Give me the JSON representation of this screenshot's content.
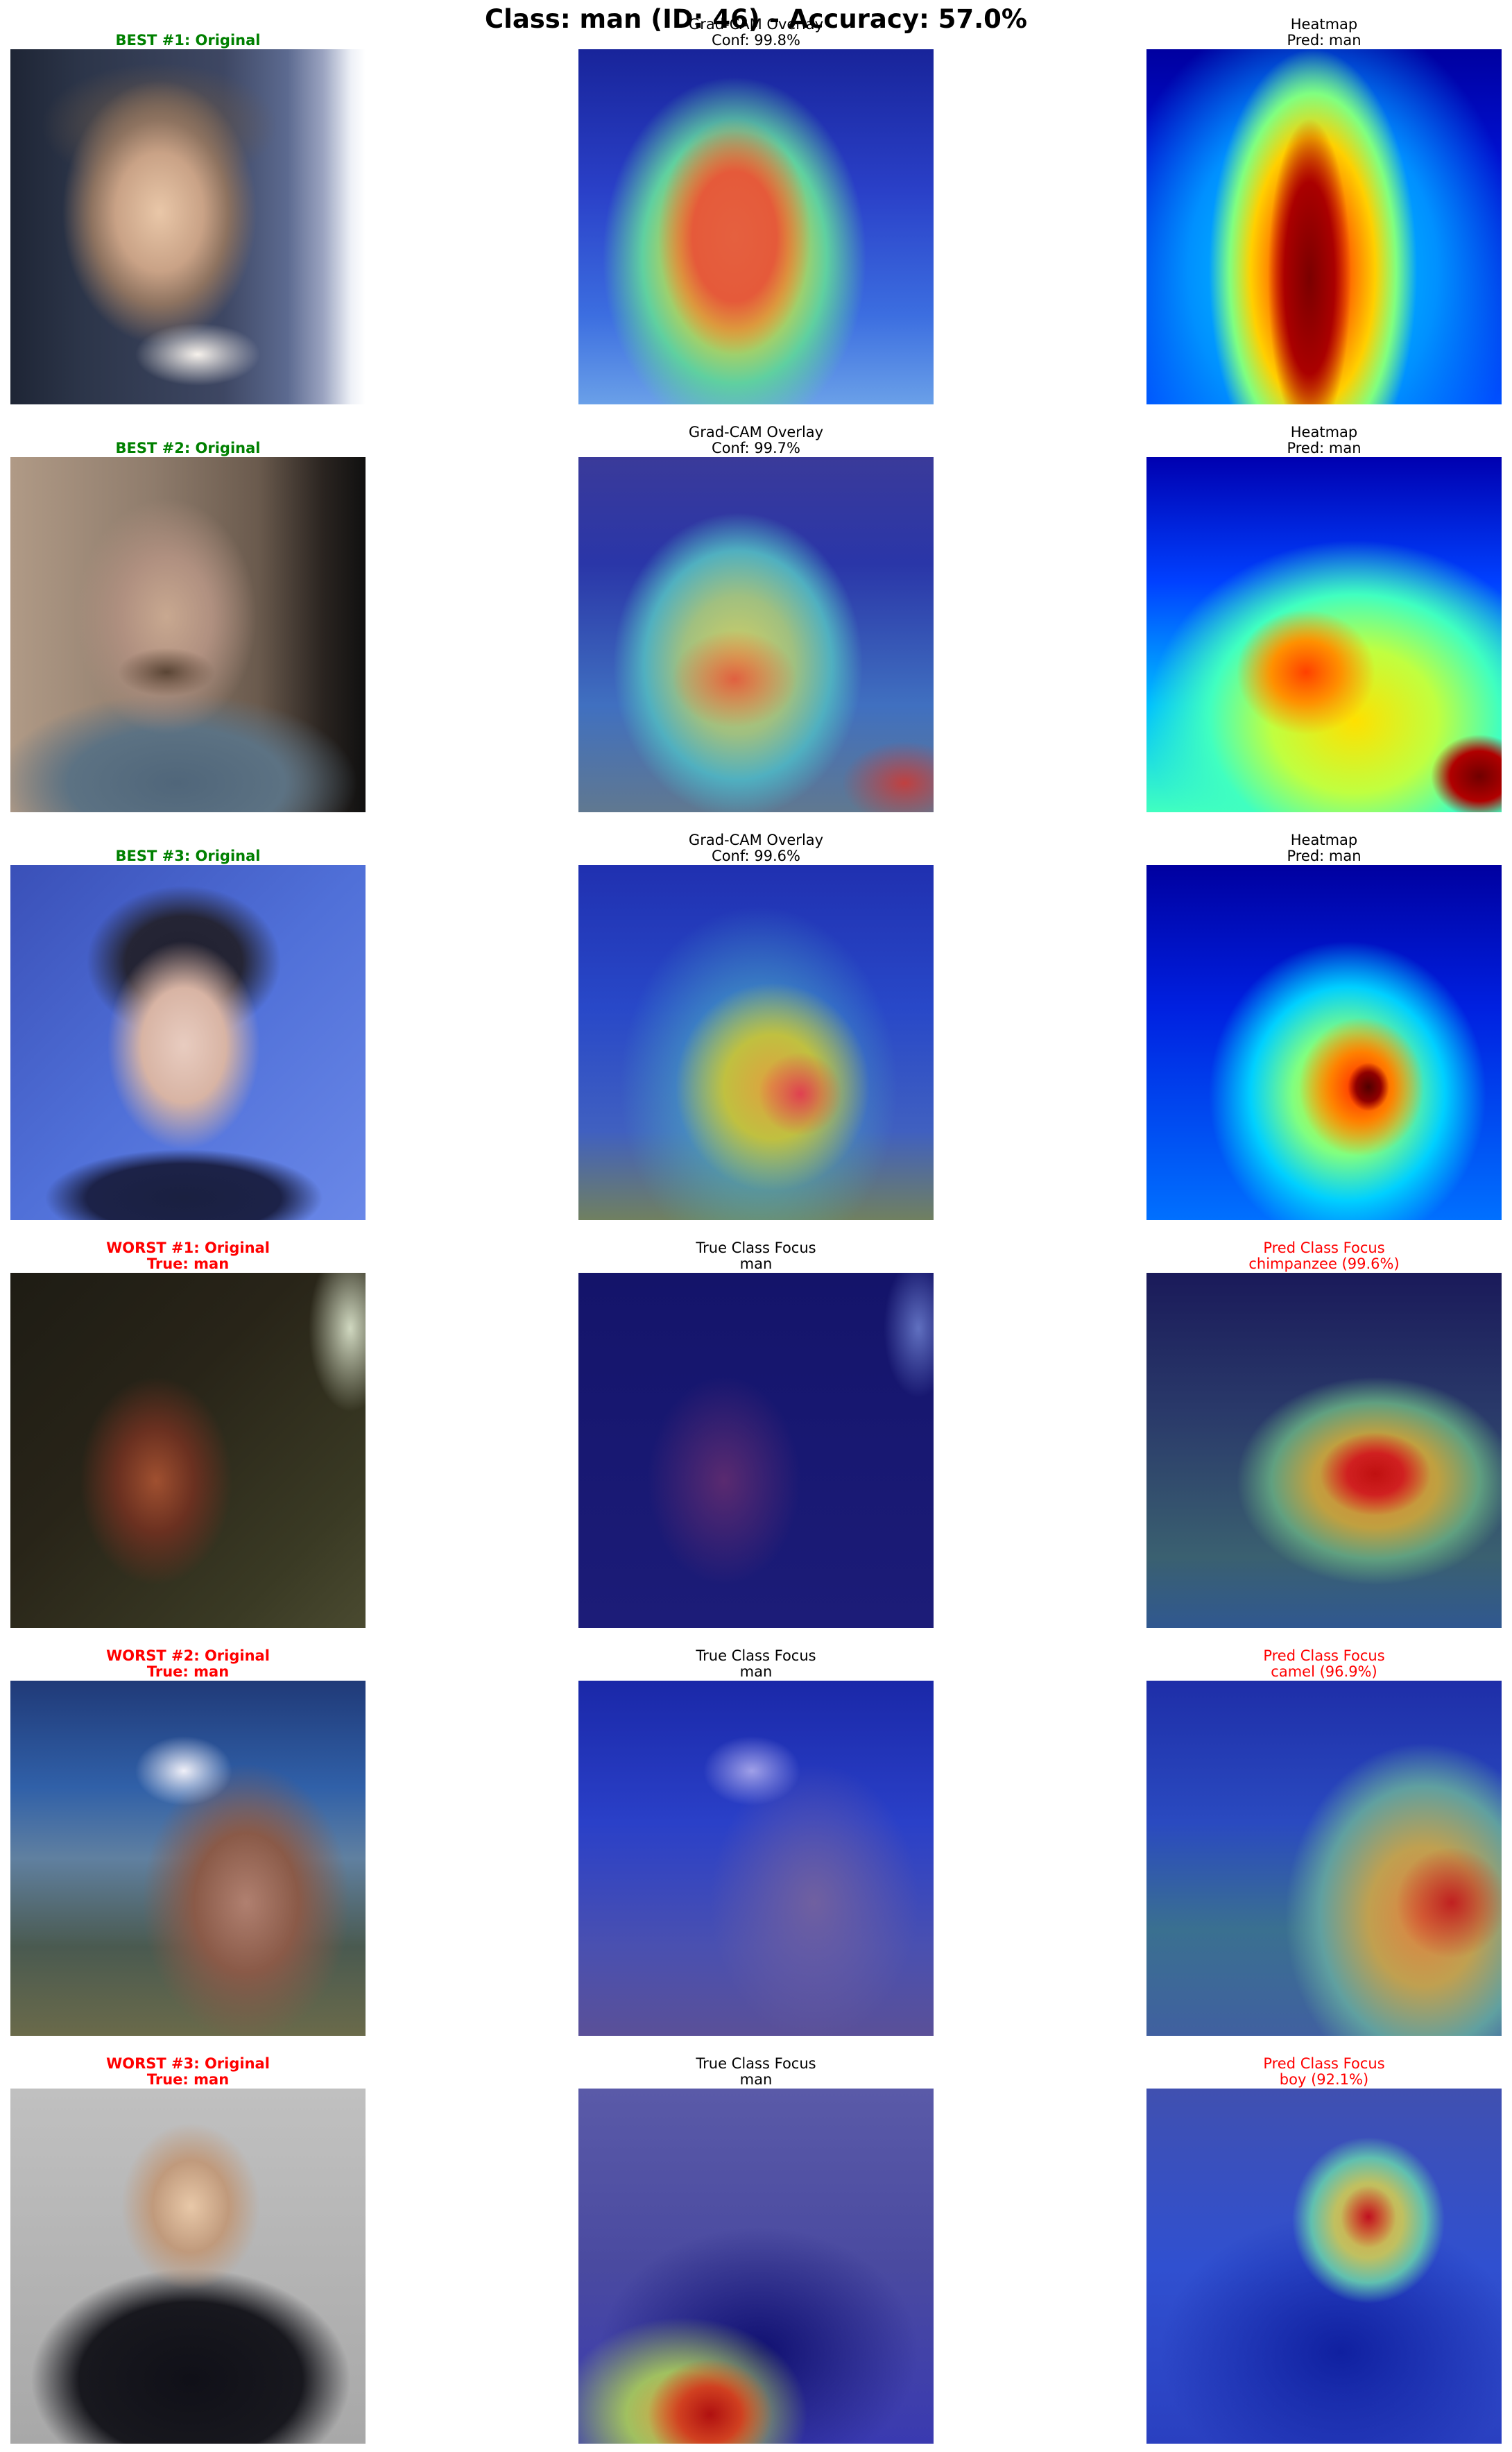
{
  "figure_title": "Class: man (ID: 46) - Accuracy: 57.0%",
  "rows": [
    {
      "original": {
        "line1": "BEST #1: Original",
        "line2": ""
      },
      "middle": {
        "line1": "Grad-CAM Overlay",
        "line2": "Conf: 99.8%"
      },
      "right": {
        "line1": "Heatmap",
        "line2": "Pred: man"
      }
    },
    {
      "original": {
        "line1": "BEST #2: Original",
        "line2": ""
      },
      "middle": {
        "line1": "Grad-CAM Overlay",
        "line2": "Conf: 99.7%"
      },
      "right": {
        "line1": "Heatmap",
        "line2": "Pred: man"
      }
    },
    {
      "original": {
        "line1": "BEST #3: Original",
        "line2": ""
      },
      "middle": {
        "line1": "Grad-CAM Overlay",
        "line2": "Conf: 99.6%"
      },
      "right": {
        "line1": "Heatmap",
        "line2": "Pred: man"
      }
    },
    {
      "original": {
        "line1": "WORST #1: Original",
        "line2": "True: man"
      },
      "middle": {
        "line1": "True Class Focus",
        "line2": "man"
      },
      "right": {
        "line1": "Pred Class Focus",
        "line2": "chimpanzee (99.6%)"
      }
    },
    {
      "original": {
        "line1": "WORST #2: Original",
        "line2": "True: man"
      },
      "middle": {
        "line1": "True Class Focus",
        "line2": "man"
      },
      "right": {
        "line1": "Pred Class Focus",
        "line2": "camel (96.9%)"
      }
    },
    {
      "original": {
        "line1": "WORST #3: Original",
        "line2": "True: man"
      },
      "middle": {
        "line1": "True Class Focus",
        "line2": "man"
      },
      "right": {
        "line1": "Pred Class Focus",
        "line2": "boy (92.1%)"
      }
    }
  ],
  "colors": {
    "best_title": "#008000",
    "worst_title": "#ff0000",
    "pred_focus_title": "#ff0000"
  }
}
